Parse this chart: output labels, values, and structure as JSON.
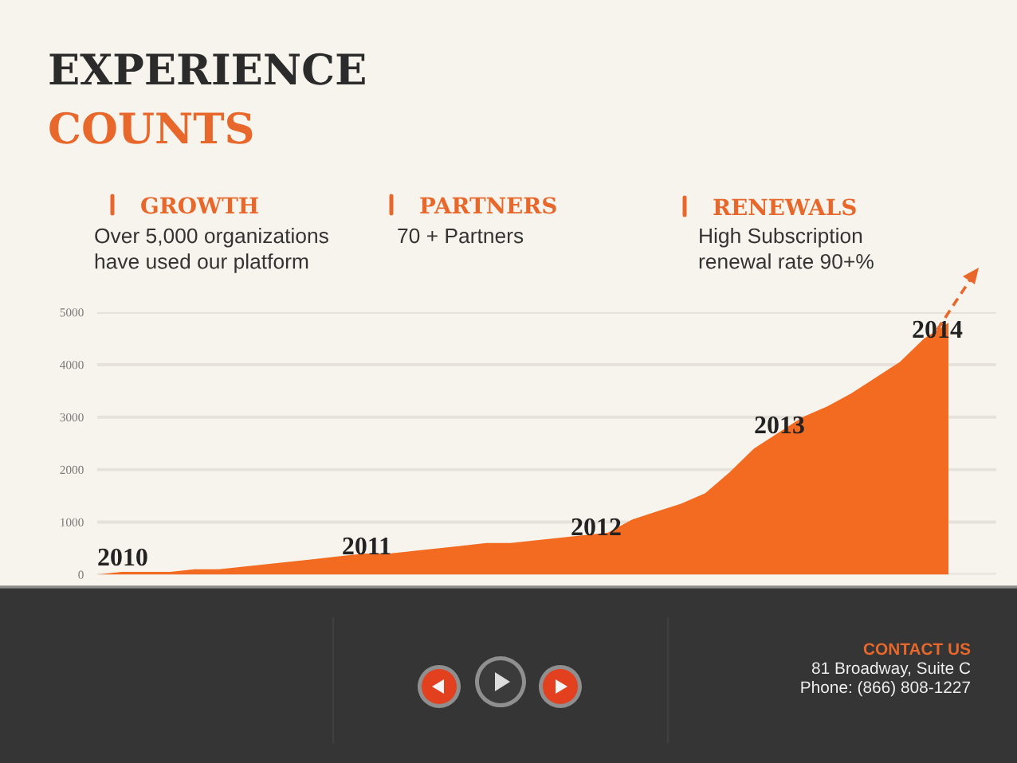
{
  "chart_data": {
    "type": "area",
    "title": "EXPERIENCE",
    "subtitle": "COUNTS",
    "categories": [
      null,
      null,
      null,
      null,
      null,
      null,
      null,
      null,
      null,
      null,
      null,
      null,
      null,
      null,
      null,
      null,
      null,
      null,
      null,
      null,
      null,
      null,
      null,
      null,
      null,
      null,
      null,
      null,
      null,
      null,
      null,
      null,
      null,
      null,
      null,
      null
    ],
    "values": [
      0,
      50,
      50,
      50,
      100,
      100,
      150,
      200,
      250,
      300,
      350,
      400,
      400,
      450,
      500,
      550,
      600,
      600,
      650,
      700,
      750,
      800,
      1050,
      1200,
      1350,
      1550,
      1950,
      2400,
      2700,
      3000,
      3200,
      3450,
      3750,
      4050,
      4500,
      4800
    ],
    "color": "#f26b21",
    "ylim": [
      0,
      5000
    ],
    "yticks": [
      0,
      1000,
      2000,
      3000,
      4000,
      5000
    ],
    "grid": "y",
    "annotations": [
      "GROWTH",
      "Over 5,000 organizations\nhave used our platform",
      "PARTNERS",
      "70 + Partners",
      "RENEWALS",
      "High Subscription\nrenewal rate 90+%",
      "2010",
      "2011",
      "2012",
      "2013",
      "2014",
      "CONTACT US",
      "81 Broadway, Suite C",
      "Phone: (866) 808-1227"
    ]
  }
}
